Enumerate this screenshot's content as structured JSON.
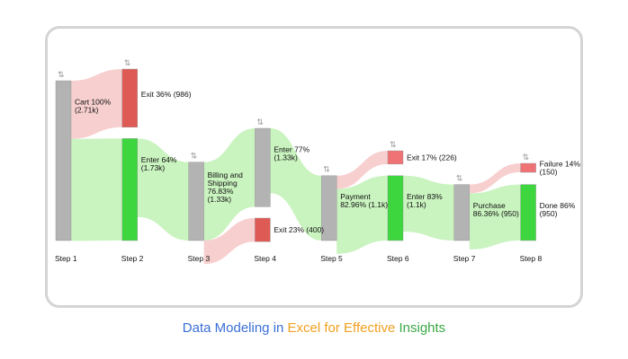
{
  "caption": {
    "parts": [
      {
        "text": "Data Modeling in ",
        "color": "#3b6fd8"
      },
      {
        "text": "Excel for Effective ",
        "color": "#f0a020"
      },
      {
        "text": "Insights",
        "color": "#3aa845"
      }
    ]
  },
  "colors": {
    "node_gray": "#b3b3b3",
    "node_green": "#3ed63e",
    "node_red": "#de5a55",
    "node_red_light": "#ef7275",
    "flow_green": "#c3f2b8",
    "flow_red": "#f6caca",
    "sort_icon": "#9a9a9a"
  },
  "chart_data": {
    "type": "sankey",
    "steps": [
      "Step 1",
      "Step 2",
      "Step 3",
      "Step 4",
      "Step 5",
      "Step 6",
      "Step 7",
      "Step 8"
    ],
    "nodes": [
      {
        "id": "cart",
        "step": 1,
        "label_line1": "Cart 100%",
        "label_line2": "(2.71k)",
        "label_line3": "",
        "value": 2710,
        "kind": "gray",
        "sort_icon": true
      },
      {
        "id": "exit2",
        "step": 2,
        "label_line1": "Exit 36% (986)",
        "label_line2": "",
        "label_line3": "",
        "value": 986,
        "kind": "red",
        "sort_icon": true
      },
      {
        "id": "enter2",
        "step": 2,
        "label_line1": "Enter 64%",
        "label_line2": "(1.73k)",
        "label_line3": "",
        "value": 1730,
        "kind": "green",
        "sort_icon": false
      },
      {
        "id": "billing",
        "step": 3,
        "label_line1": "Billing and",
        "label_line2": "Shipping",
        "label_line3": "76.83%",
        "label_line4": "(1.33k)",
        "value": 1330,
        "kind": "gray",
        "sort_icon": true
      },
      {
        "id": "enter4",
        "step": 4,
        "label_line1": "Enter 77%",
        "label_line2": "(1.33k)",
        "label_line3": "",
        "value": 1330,
        "kind": "gray",
        "sort_icon": true
      },
      {
        "id": "exit4",
        "step": 4,
        "label_line1": "Exit 23% (400)",
        "label_line2": "",
        "label_line3": "",
        "value": 400,
        "kind": "red",
        "sort_icon": false
      },
      {
        "id": "payment",
        "step": 5,
        "label_line1": "Payment",
        "label_line2": "82.96% (1.1k)",
        "label_line3": "",
        "value": 1100,
        "kind": "gray",
        "sort_icon": true
      },
      {
        "id": "exit6",
        "step": 6,
        "label_line1": "Exit 17% (226)",
        "label_line2": "",
        "label_line3": "",
        "value": 226,
        "kind": "red_light",
        "sort_icon": true
      },
      {
        "id": "enter6",
        "step": 6,
        "label_line1": "Enter 83%",
        "label_line2": "(1.1k)",
        "label_line3": "",
        "value": 1100,
        "kind": "green",
        "sort_icon": false
      },
      {
        "id": "purchase",
        "step": 7,
        "label_line1": "Purchase",
        "label_line2": "86.36% (950)",
        "label_line3": "",
        "value": 950,
        "kind": "gray",
        "sort_icon": true
      },
      {
        "id": "failure",
        "step": 8,
        "label_line1": "Failure 14%",
        "label_line2": "(150)",
        "label_line3": "",
        "value": 150,
        "kind": "red_light",
        "sort_icon": true
      },
      {
        "id": "done",
        "step": 8,
        "label_line1": "Done 86%",
        "label_line2": "(950)",
        "label_line3": "",
        "value": 950,
        "kind": "green",
        "sort_icon": false
      }
    ],
    "links": [
      {
        "source": "cart",
        "target": "exit2",
        "value": 986,
        "kind": "red"
      },
      {
        "source": "cart",
        "target": "enter2",
        "value": 1730,
        "kind": "green"
      },
      {
        "source": "enter2",
        "target": "billing",
        "value": 1330,
        "kind": "green"
      },
      {
        "source": "billing",
        "target": "enter4",
        "value": 1330,
        "kind": "green"
      },
      {
        "source": "billing",
        "target": "exit4",
        "value": 400,
        "kind": "red"
      },
      {
        "source": "enter4",
        "target": "payment",
        "value": 1100,
        "kind": "green"
      },
      {
        "source": "payment",
        "target": "exit6",
        "value": 226,
        "kind": "red"
      },
      {
        "source": "payment",
        "target": "enter6",
        "value": 1100,
        "kind": "green"
      },
      {
        "source": "enter6",
        "target": "purchase",
        "value": 950,
        "kind": "green"
      },
      {
        "source": "purchase",
        "target": "failure",
        "value": 150,
        "kind": "red"
      },
      {
        "source": "purchase",
        "target": "done",
        "value": 950,
        "kind": "green"
      }
    ]
  }
}
